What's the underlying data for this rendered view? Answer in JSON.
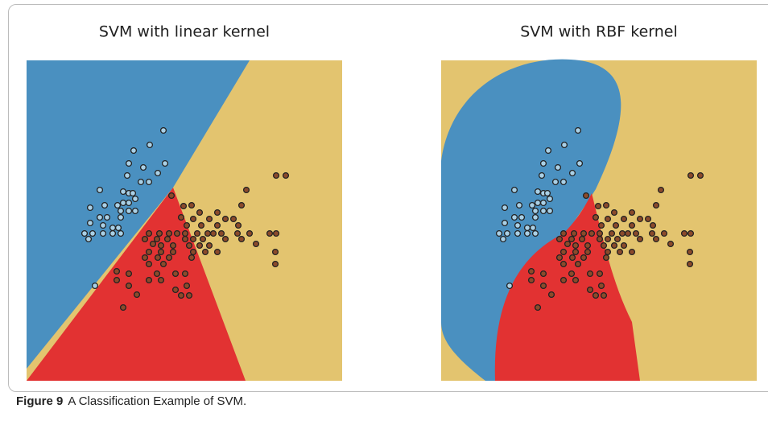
{
  "chart_data": [
    {
      "type": "scatter",
      "title": "SVM with linear kernel",
      "xlim": [
        0,
        392
      ],
      "ylim": [
        398,
        0
      ],
      "series": [
        {
          "color": "#a9d0e6",
          "x": [
            170,
            153,
            133,
            127,
            145,
            172,
            163,
            125,
            142,
            152,
            91,
            120,
            127,
            132,
            135,
            120,
            127,
            113,
            79,
            97,
            117,
            127,
            135,
            91,
            100,
            117,
            79,
            95,
            107,
            114,
            72,
            82,
            95,
            107,
            117,
            77,
            85
          ],
          "values": [
            87,
            105,
            112,
            128,
            133,
            128,
            140,
            143,
            151,
            151,
            161,
            163,
            165,
            165,
            172,
            177,
            177,
            180,
            183,
            180,
            187,
            187,
            187,
            195,
            195,
            195,
            202,
            205,
            208,
            208,
            215,
            215,
            215,
            215,
            215,
            222,
            280
          ]
        },
        {
          "color": "#8b4a2b",
          "x": [
            310,
            322,
            273,
            180,
            195,
            205,
            267,
            215,
            237,
            192,
            207,
            227,
            247,
            257,
            199,
            217,
            237,
            263,
            152,
            165,
            177,
            187,
            197,
            212,
            225,
            232,
            242,
            262,
            277,
            302,
            310,
            147,
            162,
            175,
            197,
            207,
            219,
            247,
            267,
            285,
            157,
            167,
            182,
            202,
            215,
            227,
            152,
            167,
            182,
            207,
            222,
            237,
            309,
            147,
            163,
            177,
            205,
            152,
            170,
            309,
            112,
            127,
            162,
            185,
            197,
            112,
            152,
            167,
            199,
            127,
            185,
            192,
            202,
            137,
            120
          ],
          "values": [
            143,
            143,
            161,
            168,
            181,
            180,
            180,
            189,
            189,
            195,
            197,
            197,
            197,
            197,
            205,
            205,
            205,
            205,
            215,
            215,
            215,
            215,
            215,
            215,
            215,
            215,
            215,
            215,
            215,
            215,
            215,
            222,
            222,
            222,
            222,
            222,
            222,
            222,
            222,
            228,
            228,
            230,
            230,
            230,
            230,
            230,
            238,
            238,
            238,
            238,
            238,
            238,
            238,
            245,
            245,
            245,
            245,
            253,
            253,
            253,
            262,
            265,
            265,
            265,
            265,
            273,
            273,
            273,
            280,
            280,
            285,
            292,
            292,
            291,
            307
          ]
        }
      ]
    },
    {
      "type": "scatter",
      "title": "SVM with RBF kernel",
      "xlim": [
        0,
        392
      ],
      "ylim": [
        398,
        0
      ],
      "series": [
        {
          "color": "#a9d0e6",
          "x": [
            170,
            153,
            133,
            127,
            145,
            172,
            163,
            125,
            142,
            152,
            91,
            120,
            127,
            132,
            135,
            120,
            127,
            113,
            79,
            97,
            117,
            127,
            135,
            91,
            100,
            117,
            79,
            95,
            107,
            114,
            72,
            82,
            95,
            107,
            117,
            77,
            85
          ],
          "values": [
            87,
            105,
            112,
            128,
            133,
            128,
            140,
            143,
            151,
            151,
            161,
            163,
            165,
            165,
            172,
            177,
            177,
            180,
            183,
            180,
            187,
            187,
            187,
            195,
            195,
            195,
            202,
            205,
            208,
            208,
            215,
            215,
            215,
            215,
            215,
            222,
            280
          ]
        },
        {
          "color": "#8b4a2b",
          "x": [
            310,
            322,
            273,
            180,
            195,
            205,
            267,
            215,
            237,
            192,
            207,
            227,
            247,
            257,
            199,
            217,
            237,
            263,
            152,
            165,
            177,
            187,
            197,
            212,
            225,
            232,
            242,
            262,
            277,
            302,
            310,
            147,
            162,
            175,
            197,
            207,
            219,
            247,
            267,
            285,
            157,
            167,
            182,
            202,
            215,
            227,
            152,
            167,
            182,
            207,
            222,
            237,
            309,
            147,
            163,
            177,
            205,
            152,
            170,
            309,
            112,
            127,
            162,
            185,
            197,
            112,
            152,
            167,
            199,
            127,
            185,
            192,
            202,
            137,
            120
          ],
          "values": [
            143,
            143,
            161,
            168,
            181,
            180,
            180,
            189,
            189,
            195,
            197,
            197,
            197,
            197,
            205,
            205,
            205,
            205,
            215,
            215,
            215,
            215,
            215,
            215,
            215,
            215,
            215,
            215,
            215,
            215,
            215,
            222,
            222,
            222,
            222,
            222,
            222,
            222,
            222,
            228,
            228,
            230,
            230,
            230,
            230,
            230,
            238,
            238,
            238,
            238,
            238,
            238,
            238,
            245,
            245,
            245,
            245,
            253,
            253,
            253,
            262,
            265,
            265,
            265,
            265,
            273,
            273,
            273,
            280,
            280,
            285,
            292,
            292,
            291,
            307
          ]
        }
      ]
    }
  ],
  "caption": {
    "label": "Figure 9",
    "text": "A Classification Example of SVM."
  }
}
